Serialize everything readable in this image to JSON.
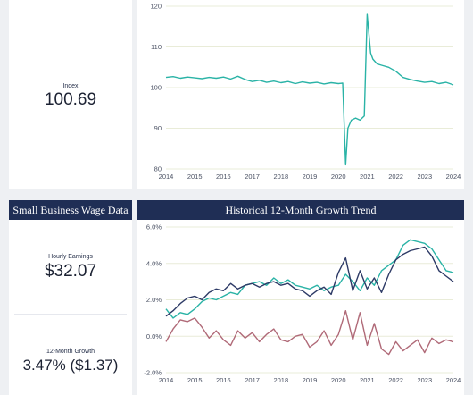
{
  "index_card": {
    "label": "Index",
    "value": "100.69"
  },
  "wage_card": {
    "title": "Small Business Wage Data",
    "hourly_label": "Hourly Earnings",
    "hourly_value": "$32.07",
    "growth_label": "12-Month Growth",
    "growth_value": "3.47% ($1.37)"
  },
  "growth_card": {
    "title": "Historical 12-Month Growth Trend"
  },
  "colors": {
    "navy": "#1f2e55",
    "teal": "#2ab3a6",
    "dark_navy": "#2d3a66",
    "rose": "#b06a78",
    "grid": "#e9ecd8"
  },
  "chart_data": [
    {
      "type": "line",
      "title": "",
      "xlabel": "",
      "ylabel": "",
      "ylim": [
        80,
        120
      ],
      "xlim": [
        2014,
        2024
      ],
      "yticks": [
        "80",
        "90",
        "100",
        "110",
        "120"
      ],
      "xticks": [
        "2014",
        "2015",
        "2016",
        "2017",
        "2018",
        "2019",
        "2020",
        "2021",
        "2022",
        "2023",
        "2024"
      ],
      "grid": "horizontal",
      "series": [
        {
          "color": "#2ab3a6",
          "x": [
            2014.0,
            2014.25,
            2014.5,
            2014.75,
            2015.0,
            2015.25,
            2015.5,
            2015.75,
            2016.0,
            2016.25,
            2016.5,
            2016.75,
            2017.0,
            2017.25,
            2017.5,
            2017.75,
            2018.0,
            2018.25,
            2018.5,
            2018.75,
            2019.0,
            2019.25,
            2019.5,
            2019.75,
            2020.0,
            2020.15,
            2020.25,
            2020.33,
            2020.45,
            2020.6,
            2020.75,
            2020.9,
            2021.0,
            2021.12,
            2021.2,
            2021.35,
            2021.5,
            2021.75,
            2022.0,
            2022.25,
            2022.5,
            2022.75,
            2023.0,
            2023.25,
            2023.5,
            2023.75,
            2024.0
          ],
          "y": [
            102.5,
            102.7,
            102.3,
            102.6,
            102.4,
            102.2,
            102.5,
            102.3,
            102.6,
            102.1,
            102.8,
            102.0,
            101.5,
            101.8,
            101.3,
            101.6,
            101.2,
            101.5,
            101.0,
            101.4,
            101.1,
            101.3,
            100.9,
            101.2,
            101.0,
            101.1,
            81.0,
            90.0,
            92.0,
            92.5,
            92.0,
            93.0,
            118.0,
            108.5,
            107.0,
            105.8,
            105.5,
            105.0,
            104.0,
            102.5,
            102.0,
            101.6,
            101.3,
            101.5,
            101.0,
            101.3,
            100.69
          ]
        }
      ]
    },
    {
      "type": "line",
      "title": "Historical 12-Month Growth Trend",
      "xlabel": "",
      "ylabel": "",
      "ylim": [
        -2.0,
        6.0
      ],
      "xlim": [
        2014,
        2024
      ],
      "yticks": [
        "-2.0%",
        "0.0%",
        "2.0%",
        "4.0%",
        "6.0%"
      ],
      "xticks": [
        "2014",
        "2015",
        "2016",
        "2017",
        "2018",
        "2019",
        "2020",
        "2021",
        "2022",
        "2023",
        "2024"
      ],
      "grid": "horizontal",
      "series": [
        {
          "color": "#2ab3a6",
          "x": [
            2014.0,
            2014.25,
            2014.5,
            2014.75,
            2015.0,
            2015.25,
            2015.5,
            2015.75,
            2016.0,
            2016.25,
            2016.5,
            2016.75,
            2017.0,
            2017.25,
            2017.5,
            2017.75,
            2018.0,
            2018.25,
            2018.5,
            2018.75,
            2019.0,
            2019.25,
            2019.5,
            2019.75,
            2020.0,
            2020.25,
            2020.5,
            2020.75,
            2021.0,
            2021.25,
            2021.5,
            2021.75,
            2022.0,
            2022.25,
            2022.5,
            2022.75,
            2023.0,
            2023.25,
            2023.5,
            2023.75,
            2024.0
          ],
          "y": [
            1.5,
            1.0,
            1.3,
            1.2,
            1.5,
            1.9,
            2.1,
            2.0,
            2.2,
            2.4,
            2.3,
            2.8,
            2.9,
            3.0,
            2.8,
            3.2,
            2.9,
            3.1,
            2.8,
            2.7,
            2.6,
            2.8,
            2.5,
            2.7,
            2.8,
            3.4,
            3.0,
            2.5,
            3.2,
            2.8,
            3.6,
            3.9,
            4.2,
            5.0,
            5.3,
            5.2,
            5.1,
            4.8,
            4.2,
            3.6,
            3.5
          ]
        },
        {
          "color": "#2d3a66",
          "x": [
            2014.0,
            2014.25,
            2014.5,
            2014.75,
            2015.0,
            2015.25,
            2015.5,
            2015.75,
            2016.0,
            2016.25,
            2016.5,
            2016.75,
            2017.0,
            2017.25,
            2017.5,
            2017.75,
            2018.0,
            2018.25,
            2018.5,
            2018.75,
            2019.0,
            2019.25,
            2019.5,
            2019.75,
            2020.0,
            2020.25,
            2020.5,
            2020.75,
            2021.0,
            2021.25,
            2021.5,
            2021.75,
            2022.0,
            2022.25,
            2022.5,
            2022.75,
            2023.0,
            2023.25,
            2023.5,
            2023.75,
            2024.0
          ],
          "y": [
            1.1,
            1.4,
            1.8,
            2.1,
            2.2,
            2.0,
            2.4,
            2.6,
            2.5,
            2.9,
            2.6,
            2.8,
            2.9,
            2.7,
            2.9,
            3.0,
            2.8,
            2.9,
            2.6,
            2.5,
            2.2,
            2.5,
            2.7,
            2.3,
            3.5,
            4.3,
            2.5,
            3.6,
            2.6,
            3.2,
            2.4,
            3.4,
            4.2,
            4.5,
            4.7,
            4.8,
            4.9,
            4.4,
            3.6,
            3.3,
            3.0
          ]
        },
        {
          "color": "#b06a78",
          "x": [
            2014.0,
            2014.25,
            2014.5,
            2014.75,
            2015.0,
            2015.25,
            2015.5,
            2015.75,
            2016.0,
            2016.25,
            2016.5,
            2016.75,
            2017.0,
            2017.25,
            2017.5,
            2017.75,
            2018.0,
            2018.25,
            2018.5,
            2018.75,
            2019.0,
            2019.25,
            2019.5,
            2019.75,
            2020.0,
            2020.25,
            2020.5,
            2020.75,
            2021.0,
            2021.25,
            2021.5,
            2021.75,
            2022.0,
            2022.25,
            2022.5,
            2022.75,
            2023.0,
            2023.25,
            2023.5,
            2023.75,
            2024.0
          ],
          "y": [
            -0.3,
            0.4,
            0.9,
            0.8,
            1.0,
            0.5,
            -0.1,
            0.3,
            -0.2,
            -0.5,
            0.3,
            -0.1,
            0.2,
            -0.3,
            0.1,
            0.4,
            -0.2,
            -0.3,
            0.0,
            0.1,
            -0.6,
            -0.3,
            0.3,
            -0.5,
            0.1,
            1.4,
            -0.2,
            1.3,
            -0.5,
            0.7,
            -0.7,
            -1.0,
            -0.3,
            -0.8,
            -0.5,
            -0.2,
            -0.9,
            -0.1,
            -0.4,
            -0.2,
            -0.3
          ]
        }
      ]
    }
  ]
}
